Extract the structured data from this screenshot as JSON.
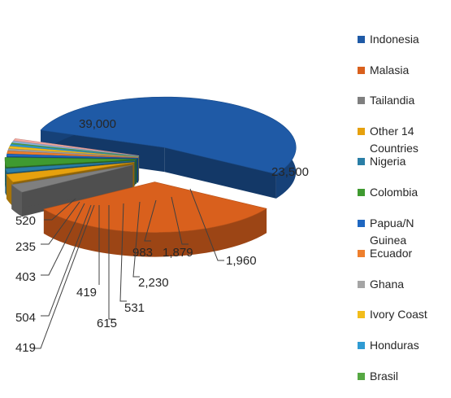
{
  "colors": {
    "background": "#ffffff",
    "label_text": "#262626",
    "leader_line": "#404040"
  },
  "chart_data": {
    "type": "pie",
    "style": "3d-exploded",
    "legend_position": "right",
    "slices": [
      {
        "name": "Indonesia",
        "value": 39000,
        "label": "39,000",
        "color": "#1f5aa6"
      },
      {
        "name": "Malasia",
        "value": 23500,
        "label": "23,500",
        "color": "#d9601d"
      },
      {
        "name": "Tailandia",
        "value": 1960,
        "label": "1,960",
        "color": "#7f7f7f"
      },
      {
        "name": "Other 14 Countries",
        "value": 1879,
        "label": "1,879",
        "color": "#e6a10e"
      },
      {
        "name": "Nigeria",
        "value": 983,
        "label": "983",
        "color": "#2a7ea6"
      },
      {
        "name": "Colombia",
        "value": 2230,
        "label": "2,230",
        "color": "#3f9a30"
      },
      {
        "name": "Papua/N Guinea",
        "value": 531,
        "label": "531",
        "color": "#1f67c1"
      },
      {
        "name": "Ecuador",
        "value": 615,
        "label": "615",
        "color": "#ee7f2d"
      },
      {
        "name": "Ghana",
        "value": 419,
        "label": "419",
        "color": "#a5a5a5"
      },
      {
        "name": "Ivory Coast",
        "value": 504,
        "label": "504",
        "color": "#f2bd1c"
      },
      {
        "name": "Honduras",
        "value": 403,
        "label": "403",
        "color": "#2f9bd3"
      },
      {
        "name": "Brasil",
        "value": 235,
        "label": "235",
        "color": "#56a843"
      },
      {
        "name": "",
        "value": 419,
        "label": "419",
        "color": "#8fb4e0"
      },
      {
        "name": "",
        "value": 520,
        "label": "520",
        "color": "#f0a8a0"
      }
    ],
    "legend": [
      "Indonesia",
      "Malasia",
      "Tailandia",
      "Other 14 Countries",
      "Nigeria",
      "Colombia",
      "Papua/N Guinea",
      "Ecuador",
      "Ghana",
      "Ivory Coast",
      "Honduras",
      "Brasil"
    ]
  }
}
